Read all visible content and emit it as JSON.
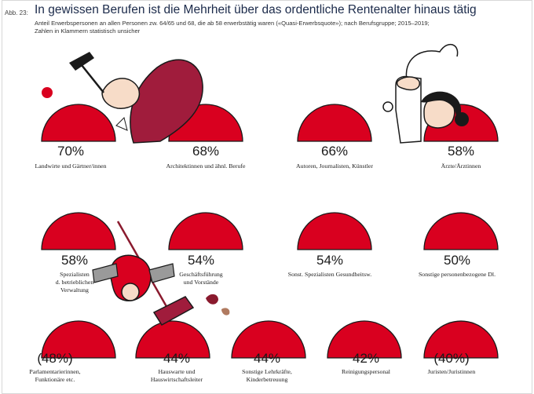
{
  "header": {
    "figure_label": "Abb. 23:",
    "title": "In gewissen Berufen ist die Mehrheit über das ordentliche Rentenalter hinaus tätig",
    "subtitle_line1": "Anteil Erwerbspersonen an allen Personen zw. 64/65 und 68, die ab 58 erwerbstätig waren («Quasi-Erwerbsquote»); nach Berufsgruppe; 2015–2019;",
    "subtitle_line2": "Zahlen in Klammern statistisch unsicher"
  },
  "colors": {
    "semicircle": "#d9001f",
    "semicircle_dark": "#a8001a",
    "illustration_wine": "#a01c3c"
  },
  "chart_data": {
    "type": "semicircle-pictogram",
    "title": "In gewissen Berufen ist die Mehrheit über das ordentliche Rentenalter hinaus tätig",
    "unit": "%",
    "items": [
      {
        "label": [
          "Landwirte und Gärtner/innen"
        ],
        "value": 70,
        "display": "70%"
      },
      {
        "label": [
          "Architektinnen und ähnl. Berufe"
        ],
        "value": 68,
        "display": "68%"
      },
      {
        "label": [
          "Autoren, Journalisten, Künstler"
        ],
        "value": 66,
        "display": "66%"
      },
      {
        "label": [
          "Ärzte/Ärztinnen"
        ],
        "value": 58,
        "display": "58%"
      },
      {
        "label": [
          "Spezialisten",
          "d. betrieblichen",
          "Verwaltung"
        ],
        "value": 58,
        "display": "58%"
      },
      {
        "label": [
          "Geschäftsführung",
          "und Vorstände"
        ],
        "value": 54,
        "display": "54%"
      },
      {
        "label": [
          "Sonst. Spezialisten Gesundheitsw."
        ],
        "value": 54,
        "display": "54%"
      },
      {
        "label": [
          "Sonstige personenbezogene Dl."
        ],
        "value": 50,
        "display": "50%"
      },
      {
        "label": [
          "Parlamentarierinnen,",
          "Funktionäre etc."
        ],
        "value": 48,
        "display": "(48%)",
        "uncertain": true
      },
      {
        "label": [
          "Hauswarte und",
          "Hauswirtschaftsleiter"
        ],
        "value": 44,
        "display": "44%"
      },
      {
        "label": [
          "Sonstige Lehrkräfte,",
          "Kinderbetreuung"
        ],
        "value": 44,
        "display": "44%"
      },
      {
        "label": [
          "Reinigungspersonal"
        ],
        "value": 42,
        "display": "42%"
      },
      {
        "label": [
          "Juristen/Juristinnen"
        ],
        "value": 40,
        "display": "(40%)",
        "uncertain": true
      }
    ]
  }
}
